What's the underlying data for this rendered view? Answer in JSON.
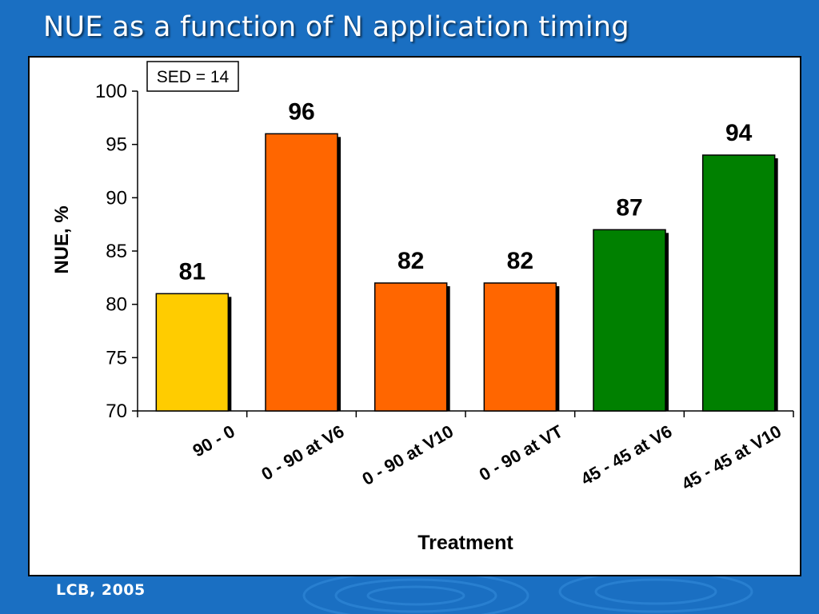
{
  "slide": {
    "title": "NUE as a function of N application timing",
    "footer": "LCB, 2005"
  },
  "colors": {
    "background": "#1a6fc2",
    "bar_yellow": "#ffcc00",
    "bar_orange": "#ff6600",
    "bar_green": "#008000"
  },
  "chart_data": {
    "type": "bar",
    "annotation": "SED = 14",
    "categories": [
      "90 - 0",
      "0 - 90 at V6",
      "0 - 90 at V10",
      "0 - 90 at VT",
      "45 - 45 at V6",
      "45 - 45 at V10"
    ],
    "values": [
      81,
      96,
      82,
      82,
      87,
      94
    ],
    "bar_colors": [
      "#ffcc00",
      "#ff6600",
      "#ff6600",
      "#ff6600",
      "#008000",
      "#008000"
    ],
    "data_labels": [
      "81",
      "96",
      "82",
      "82",
      "87",
      "94"
    ],
    "xlabel": "Treatment",
    "ylabel": "NUE, %",
    "ylim": [
      70,
      100
    ],
    "yticks": [
      70,
      75,
      80,
      85,
      90,
      95,
      100
    ],
    "grid": false,
    "legend": "none"
  }
}
